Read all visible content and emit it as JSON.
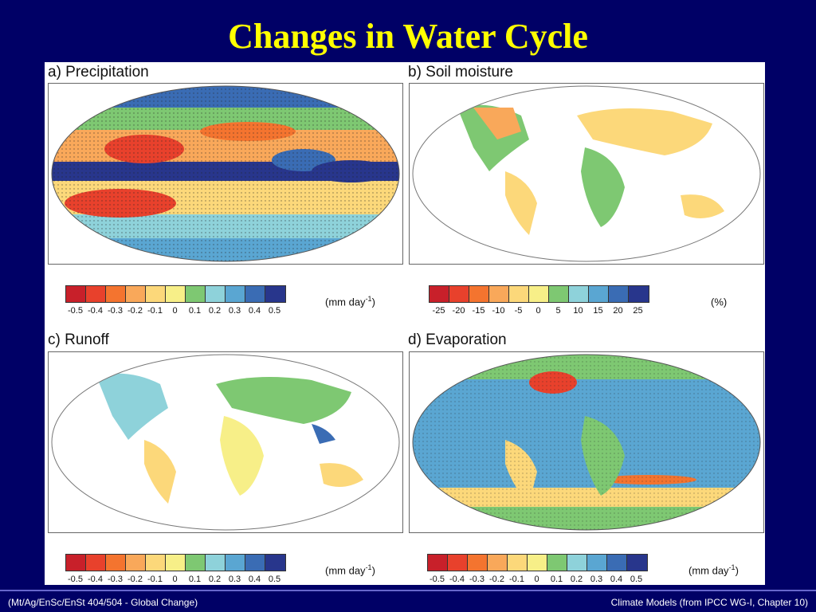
{
  "slide": {
    "title": "Changes in Water Cycle",
    "footer_left": "(Mt/Ag/EnSc/EnSt 404/504 - Global Change)",
    "footer_right": "Climate Models  (from IPCC WG-I, Chapter 10)"
  },
  "colors": {
    "background": "#000066",
    "title": "#ffff00",
    "ocean_fill": "#ffffff",
    "land_outline": "#222222"
  },
  "panels": [
    {
      "id": "a",
      "label": "a) Precipitation",
      "unit_text": "(mm day",
      "unit_sup": "-1",
      "unit_close": ")",
      "ticks": [
        "-0.5",
        "-0.4",
        "-0.3",
        "-0.2",
        "-0.1",
        "0",
        "0.1",
        "0.2",
        "0.3",
        "0.4",
        "0.5"
      ],
      "colorbar": [
        "#c8202a",
        "#e8412c",
        "#f4742f",
        "#f9a85a",
        "#fcd87a",
        "#f7ef88",
        "#7ec872",
        "#8ed2da",
        "#5aa6d2",
        "#3a6cb4",
        "#28368c"
      ],
      "coverage": "global"
    },
    {
      "id": "b",
      "label": "b) Soil moisture",
      "unit_text": "(%)",
      "unit_sup": "",
      "unit_close": "",
      "ticks": [
        "-25",
        "-20",
        "-15",
        "-10",
        "-5",
        "0",
        "5",
        "10",
        "15",
        "20",
        "25"
      ],
      "colorbar": [
        "#c8202a",
        "#e8412c",
        "#f4742f",
        "#f9a85a",
        "#fcd87a",
        "#f7ef88",
        "#7ec872",
        "#8ed2da",
        "#5aa6d2",
        "#3a6cb4",
        "#28368c"
      ],
      "coverage": "land"
    },
    {
      "id": "c",
      "label": "c) Runoff",
      "unit_text": "(mm day",
      "unit_sup": "-1",
      "unit_close": ")",
      "ticks": [
        "-0.5",
        "-0.4",
        "-0.3",
        "-0.2",
        "-0.1",
        "0",
        "0.1",
        "0.2",
        "0.3",
        "0.4",
        "0.5"
      ],
      "colorbar": [
        "#c8202a",
        "#e8412c",
        "#f4742f",
        "#f9a85a",
        "#fcd87a",
        "#f7ef88",
        "#7ec872",
        "#8ed2da",
        "#5aa6d2",
        "#3a6cb4",
        "#28368c"
      ],
      "coverage": "land"
    },
    {
      "id": "d",
      "label": "d) Evaporation",
      "unit_text": "(mm day",
      "unit_sup": "-1",
      "unit_close": ")",
      "ticks": [
        "-0.5",
        "-0.4",
        "-0.3",
        "-0.2",
        "-0.1",
        "0",
        "0.1",
        "0.2",
        "0.3",
        "0.4",
        "0.5"
      ],
      "colorbar": [
        "#c8202a",
        "#e8412c",
        "#f4742f",
        "#f9a85a",
        "#fcd87a",
        "#f7ef88",
        "#7ec872",
        "#8ed2da",
        "#5aa6d2",
        "#3a6cb4",
        "#28368c"
      ],
      "coverage": "global"
    }
  ]
}
